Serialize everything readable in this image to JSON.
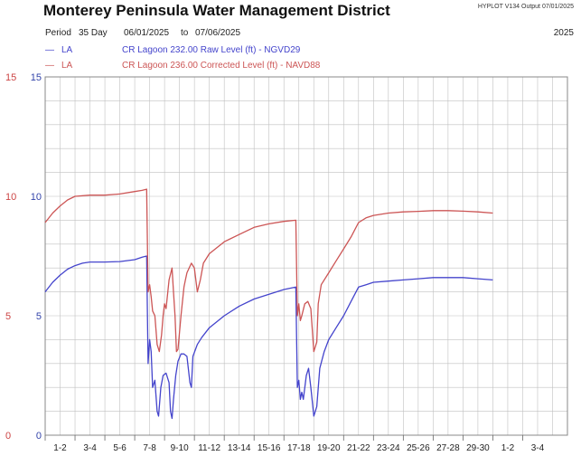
{
  "header": {
    "title": "Monterey Peninsula Water Management District",
    "version": "HYPLOT V134  Output 07/01/2025",
    "period_label": "Period",
    "period_length": "35 Day",
    "start_date": "06/01/2025",
    "to_label": "to",
    "end_date": "07/06/2025",
    "year": "2025"
  },
  "colors": {
    "raw": "#4444cc",
    "corrected": "#cc5555",
    "grid": "#c0c0c0",
    "axis_text_left": "#cc4444"
  },
  "chart_data": {
    "type": "line",
    "title": "Monterey Peninsula Water Management District",
    "ylim": [
      0,
      15
    ],
    "yticks": [
      "0",
      "5",
      "10",
      "15"
    ],
    "xlim": [
      0,
      35
    ],
    "xtick_labels": [
      "1-2",
      "3-4",
      "5-6",
      "7-8",
      "9-10",
      "11-12",
      "13-14",
      "15-16",
      "17-18",
      "19-20",
      "21-22",
      "23-24",
      "25-26",
      "27-28",
      "29-30",
      "1-2",
      "3-4"
    ],
    "grid": true,
    "legend_position": "top-left",
    "series": [
      {
        "name": "CR Lagoon  232.00 Raw Level (ft) - NGVD29",
        "site": "LA",
        "color": "#4444cc",
        "points": [
          [
            0,
            6.0
          ],
          [
            0.5,
            6.4
          ],
          [
            1,
            6.7
          ],
          [
            1.5,
            6.95
          ],
          [
            2,
            7.1
          ],
          [
            2.5,
            7.2
          ],
          [
            3,
            7.25
          ],
          [
            4,
            7.25
          ],
          [
            5,
            7.27
          ],
          [
            6,
            7.35
          ],
          [
            6.5,
            7.45
          ],
          [
            6.8,
            7.5
          ],
          [
            6.9,
            3.0
          ],
          [
            7.0,
            4.0
          ],
          [
            7.1,
            3.5
          ],
          [
            7.2,
            2.0
          ],
          [
            7.35,
            2.3
          ],
          [
            7.5,
            1.0
          ],
          [
            7.6,
            0.8
          ],
          [
            7.75,
            2.0
          ],
          [
            7.9,
            2.5
          ],
          [
            8.1,
            2.6
          ],
          [
            8.3,
            2.2
          ],
          [
            8.4,
            1.0
          ],
          [
            8.5,
            0.7
          ],
          [
            8.6,
            1.5
          ],
          [
            8.75,
            2.5
          ],
          [
            8.9,
            3.1
          ],
          [
            9.1,
            3.4
          ],
          [
            9.3,
            3.4
          ],
          [
            9.5,
            3.3
          ],
          [
            9.7,
            2.2
          ],
          [
            9.8,
            2.0
          ],
          [
            9.9,
            3.3
          ],
          [
            10.2,
            3.8
          ],
          [
            10.5,
            4.1
          ],
          [
            11,
            4.5
          ],
          [
            12,
            5.0
          ],
          [
            13,
            5.4
          ],
          [
            14,
            5.7
          ],
          [
            15,
            5.9
          ],
          [
            16,
            6.1
          ],
          [
            16.8,
            6.2
          ],
          [
            16.9,
            2.0
          ],
          [
            17.0,
            2.3
          ],
          [
            17.1,
            1.5
          ],
          [
            17.2,
            1.8
          ],
          [
            17.3,
            1.5
          ],
          [
            17.5,
            2.5
          ],
          [
            17.65,
            2.8
          ],
          [
            17.8,
            2.0
          ],
          [
            18.0,
            0.8
          ],
          [
            18.2,
            1.2
          ],
          [
            18.4,
            2.8
          ],
          [
            18.7,
            3.5
          ],
          [
            19,
            4.0
          ],
          [
            19.5,
            4.5
          ],
          [
            20,
            5.0
          ],
          [
            20.5,
            5.6
          ],
          [
            21,
            6.2
          ],
          [
            21.5,
            6.3
          ],
          [
            22,
            6.4
          ],
          [
            23,
            6.45
          ],
          [
            24,
            6.5
          ],
          [
            25,
            6.55
          ],
          [
            26,
            6.6
          ],
          [
            27,
            6.6
          ],
          [
            28,
            6.6
          ],
          [
            29,
            6.55
          ],
          [
            30,
            6.5
          ]
        ]
      },
      {
        "name": "CR Lagoon  236.00 Corrected Level (ft) - NAVD88",
        "site": "LA",
        "color": "#cc5555",
        "points": [
          [
            0,
            8.9
          ],
          [
            0.5,
            9.3
          ],
          [
            1,
            9.6
          ],
          [
            1.5,
            9.85
          ],
          [
            2,
            10.0
          ],
          [
            3,
            10.05
          ],
          [
            4,
            10.05
          ],
          [
            5,
            10.1
          ],
          [
            6,
            10.2
          ],
          [
            6.5,
            10.25
          ],
          [
            6.8,
            10.3
          ],
          [
            6.9,
            6.0
          ],
          [
            7.0,
            6.3
          ],
          [
            7.1,
            5.8
          ],
          [
            7.2,
            5.2
          ],
          [
            7.35,
            5.0
          ],
          [
            7.5,
            3.8
          ],
          [
            7.65,
            3.5
          ],
          [
            7.8,
            4.2
          ],
          [
            7.9,
            5.0
          ],
          [
            8.0,
            5.5
          ],
          [
            8.1,
            5.3
          ],
          [
            8.3,
            6.5
          ],
          [
            8.5,
            7.0
          ],
          [
            8.6,
            6.0
          ],
          [
            8.7,
            5.0
          ],
          [
            8.8,
            3.5
          ],
          [
            8.9,
            3.6
          ],
          [
            9.1,
            5.0
          ],
          [
            9.3,
            6.2
          ],
          [
            9.4,
            6.5
          ],
          [
            9.5,
            6.8
          ],
          [
            9.8,
            7.2
          ],
          [
            10.0,
            7.0
          ],
          [
            10.2,
            6.0
          ],
          [
            10.4,
            6.5
          ],
          [
            10.6,
            7.2
          ],
          [
            11,
            7.6
          ],
          [
            12,
            8.1
          ],
          [
            13,
            8.4
          ],
          [
            14,
            8.7
          ],
          [
            15,
            8.85
          ],
          [
            16,
            8.95
          ],
          [
            16.8,
            9.0
          ],
          [
            16.9,
            5.0
          ],
          [
            17.0,
            5.5
          ],
          [
            17.1,
            4.8
          ],
          [
            17.2,
            5.0
          ],
          [
            17.4,
            5.5
          ],
          [
            17.6,
            5.6
          ],
          [
            17.8,
            5.3
          ],
          [
            18.0,
            3.5
          ],
          [
            18.2,
            3.9
          ],
          [
            18.3,
            5.5
          ],
          [
            18.5,
            6.3
          ],
          [
            19,
            6.8
          ],
          [
            19.5,
            7.3
          ],
          [
            20,
            7.8
          ],
          [
            20.5,
            8.3
          ],
          [
            21,
            8.9
          ],
          [
            21.5,
            9.1
          ],
          [
            22,
            9.2
          ],
          [
            23,
            9.3
          ],
          [
            24,
            9.35
          ],
          [
            25,
            9.37
          ],
          [
            26,
            9.4
          ],
          [
            27,
            9.4
          ],
          [
            28,
            9.38
          ],
          [
            29,
            9.35
          ],
          [
            30,
            9.3
          ]
        ]
      }
    ]
  }
}
